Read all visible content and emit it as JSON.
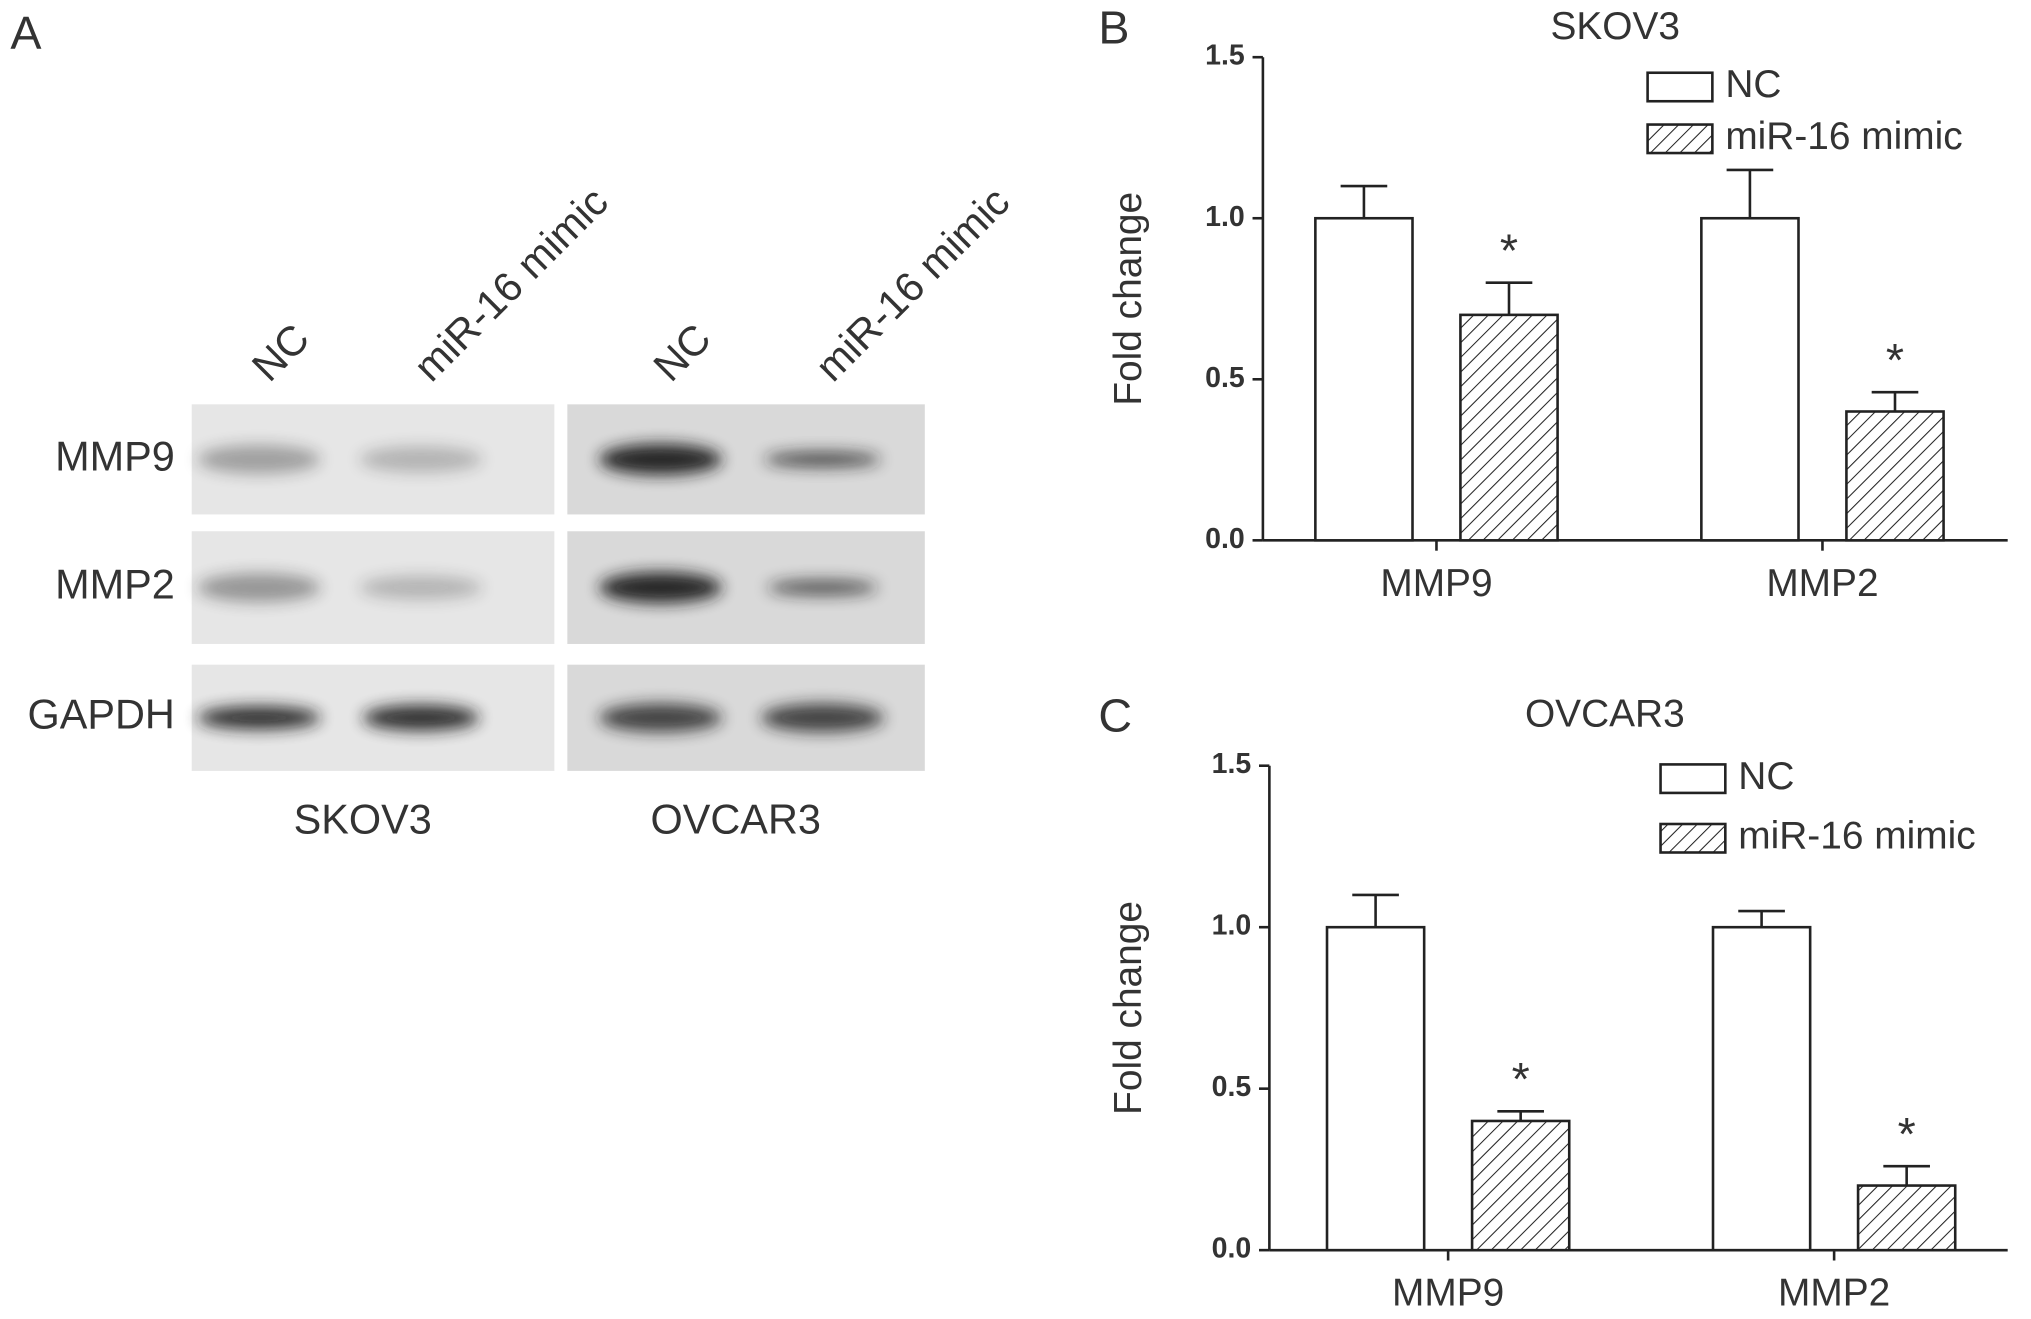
{
  "blot": {
    "panel": "A",
    "lanes": [
      "NC",
      "miR-16 mimic",
      "NC",
      "miR-16 mimic"
    ],
    "proteins": [
      "MMP9",
      "MMP2",
      "GAPDH"
    ],
    "cell_lines": [
      "SKOV3",
      "OVCAR3"
    ]
  },
  "chart_data": [
    {
      "type": "bar",
      "panel": "B",
      "title": "SKOV3",
      "y_label": "Fold change",
      "categories": [
        "MMP9",
        "MMP2"
      ],
      "series": [
        {
          "name": "NC",
          "color": "#ffffff",
          "pattern": "none",
          "values": [
            1.0,
            1.0
          ],
          "errors": [
            0.1,
            0.15
          ]
        },
        {
          "name": "miR-16 mimic",
          "color": "#ffffff",
          "pattern": "hatch",
          "values": [
            0.7,
            0.4
          ],
          "errors": [
            0.1,
            0.06
          ],
          "annotations": [
            "*",
            "*"
          ]
        }
      ],
      "ylim": [
        0,
        1.5
      ],
      "yticks": [
        {
          "value": 0,
          "label": "0.0"
        },
        0.5,
        {
          "value": 1,
          "label": "1.0"
        },
        1.5
      ],
      "legend": "upper right"
    },
    {
      "type": "bar",
      "panel": "C",
      "title": "OVCAR3",
      "y_label": "Fold change",
      "categories": [
        "MMP9",
        "MMP2"
      ],
      "series": [
        {
          "name": "NC",
          "color": "#ffffff",
          "pattern": "none",
          "values": [
            1.0,
            1.0
          ],
          "errors": [
            0.1,
            0.05
          ]
        },
        {
          "name": "miR-16 mimic",
          "color": "#ffffff",
          "pattern": "hatch",
          "values": [
            0.4,
            0.2
          ],
          "errors": [
            0.03,
            0.06
          ],
          "annotations": [
            "*",
            "*"
          ]
        }
      ],
      "ylim": [
        0,
        1.5
      ],
      "yticks": [
        {
          "value": 0,
          "label": "0.0"
        },
        0.5,
        {
          "value": 1,
          "label": "1.0"
        },
        1.5
      ],
      "legend": "upper right"
    }
  ]
}
